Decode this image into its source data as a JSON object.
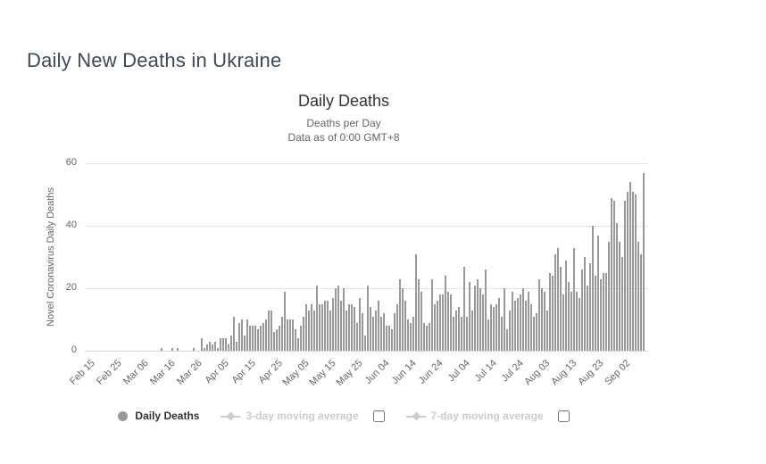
{
  "page": {
    "title": "Daily New Deaths in Ukraine"
  },
  "colors": {
    "bar": "#999999",
    "gridline": "#e6e6e6",
    "x_axis_line": "#ccd6eb",
    "title_text": "#333333",
    "subtitle_text": "#666666",
    "page_title_text": "#3a4a5c",
    "legend_active_text": "#333333",
    "legend_disabled": "#cccccc"
  },
  "legend": {
    "items": [
      {
        "label": "Daily Deaths",
        "state": "active",
        "marker": "circle",
        "checkbox": false
      },
      {
        "label": "3-day moving average",
        "state": "disabled",
        "marker": "line-diamond",
        "checkbox": true,
        "checked": false
      },
      {
        "label": "7-day moving average",
        "state": "disabled",
        "marker": "line-diamond",
        "checkbox": true,
        "checked": false
      }
    ]
  },
  "chart_data": {
    "type": "bar",
    "title": "Daily Deaths",
    "subtitle_line1": "Deaths per Day",
    "subtitle_line2": "Data as of 0:00 GMT+8",
    "xlabel": "",
    "ylabel": "Novel Coronavirus Daily Deaths",
    "series_name": "Daily Deaths",
    "ylim": [
      0,
      60
    ],
    "yticks": [
      0,
      20,
      40,
      60
    ],
    "grid": true,
    "legend_position": "bottom",
    "xticklabels": [
      "Feb 15",
      "Feb 25",
      "Mar 06",
      "Mar 16",
      "Mar 26",
      "Apr 05",
      "Apr 15",
      "Apr 25",
      "May 05",
      "May 15",
      "May 25",
      "Jun 04",
      "Jun 14",
      "Jun 24",
      "Jul 04",
      "Jul 14",
      "Jul 24",
      "Aug 03",
      "Aug 13",
      "Aug 23",
      "Sep 02"
    ],
    "categories": [
      "Feb 15",
      "Feb 16",
      "Feb 17",
      "Feb 18",
      "Feb 19",
      "Feb 20",
      "Feb 21",
      "Feb 22",
      "Feb 23",
      "Feb 24",
      "Feb 25",
      "Feb 26",
      "Feb 27",
      "Feb 28",
      "Feb 29",
      "Mar 01",
      "Mar 02",
      "Mar 03",
      "Mar 04",
      "Mar 05",
      "Mar 06",
      "Mar 07",
      "Mar 08",
      "Mar 09",
      "Mar 10",
      "Mar 11",
      "Mar 12",
      "Mar 13",
      "Mar 14",
      "Mar 15",
      "Mar 16",
      "Mar 17",
      "Mar 18",
      "Mar 19",
      "Mar 20",
      "Mar 21",
      "Mar 22",
      "Mar 23",
      "Mar 24",
      "Mar 25",
      "Mar 26",
      "Mar 27",
      "Mar 28",
      "Mar 29",
      "Mar 30",
      "Mar 31",
      "Apr 01",
      "Apr 02",
      "Apr 03",
      "Apr 04",
      "Apr 05",
      "Apr 06",
      "Apr 07",
      "Apr 08",
      "Apr 09",
      "Apr 10",
      "Apr 11",
      "Apr 12",
      "Apr 13",
      "Apr 14",
      "Apr 15",
      "Apr 16",
      "Apr 17",
      "Apr 18",
      "Apr 19",
      "Apr 20",
      "Apr 21",
      "Apr 22",
      "Apr 23",
      "Apr 24",
      "Apr 25",
      "Apr 26",
      "Apr 27",
      "Apr 28",
      "Apr 29",
      "Apr 30",
      "May 01",
      "May 02",
      "May 03",
      "May 04",
      "May 05",
      "May 06",
      "May 07",
      "May 08",
      "May 09",
      "May 10",
      "May 11",
      "May 12",
      "May 13",
      "May 14",
      "May 15",
      "May 16",
      "May 17",
      "May 18",
      "May 19",
      "May 20",
      "May 21",
      "May 22",
      "May 23",
      "May 24",
      "May 25",
      "May 26",
      "May 27",
      "May 28",
      "May 29",
      "May 30",
      "May 31",
      "Jun 01",
      "Jun 02",
      "Jun 03",
      "Jun 04",
      "Jun 05",
      "Jun 06",
      "Jun 07",
      "Jun 08",
      "Jun 09",
      "Jun 10",
      "Jun 11",
      "Jun 12",
      "Jun 13",
      "Jun 14",
      "Jun 15",
      "Jun 16",
      "Jun 17",
      "Jun 18",
      "Jun 19",
      "Jun 20",
      "Jun 21",
      "Jun 22",
      "Jun 23",
      "Jun 24",
      "Jun 25",
      "Jun 26",
      "Jun 27",
      "Jun 28",
      "Jun 29",
      "Jun 30",
      "Jul 01",
      "Jul 02",
      "Jul 03",
      "Jul 04",
      "Jul 05",
      "Jul 06",
      "Jul 07",
      "Jul 08",
      "Jul 09",
      "Jul 10",
      "Jul 11",
      "Jul 12",
      "Jul 13",
      "Jul 14",
      "Jul 15",
      "Jul 16",
      "Jul 17",
      "Jul 18",
      "Jul 19",
      "Jul 20",
      "Jul 21",
      "Jul 22",
      "Jul 23",
      "Jul 24",
      "Jul 25",
      "Jul 26",
      "Jul 27",
      "Jul 28",
      "Jul 29",
      "Jul 30",
      "Jul 31",
      "Aug 01",
      "Aug 02",
      "Aug 03",
      "Aug 04",
      "Aug 05",
      "Aug 06",
      "Aug 07",
      "Aug 08",
      "Aug 09",
      "Aug 10",
      "Aug 11",
      "Aug 12",
      "Aug 13",
      "Aug 14",
      "Aug 15",
      "Aug 16",
      "Aug 17",
      "Aug 18",
      "Aug 19",
      "Aug 20",
      "Aug 21",
      "Aug 22",
      "Aug 23",
      "Aug 24",
      "Aug 25",
      "Aug 26",
      "Aug 27",
      "Aug 28",
      "Aug 29",
      "Aug 30",
      "Aug 31",
      "Sep 01",
      "Sep 02",
      "Sep 03",
      "Sep 04",
      "Sep 05",
      "Sep 06",
      "Sep 07",
      "Sep 08",
      "Sep 09"
    ],
    "values": [
      0,
      0,
      0,
      0,
      0,
      0,
      0,
      0,
      0,
      0,
      0,
      0,
      0,
      0,
      0,
      0,
      0,
      0,
      0,
      0,
      0,
      0,
      0,
      0,
      0,
      0,
      0,
      1,
      0,
      0,
      0,
      1,
      0,
      1,
      0,
      0,
      0,
      0,
      0,
      1,
      0,
      0,
      4,
      1,
      2,
      3,
      2,
      3,
      1,
      4,
      4,
      4,
      2,
      5,
      11,
      3,
      9,
      10,
      5,
      10,
      8,
      8,
      8,
      7,
      8,
      9,
      10,
      13,
      13,
      6,
      7,
      8,
      11,
      19,
      10,
      10,
      10,
      7,
      4,
      8,
      11,
      15,
      13,
      15,
      13,
      21,
      15,
      15,
      16,
      16,
      13,
      17,
      20,
      21,
      16,
      20,
      13,
      15,
      15,
      14,
      9,
      17,
      12,
      5,
      21,
      14,
      11,
      13,
      16,
      11,
      12,
      8,
      8,
      7,
      12,
      15,
      23,
      20,
      16,
      10,
      9,
      11,
      31,
      23,
      19,
      9,
      8,
      9,
      23,
      15,
      16,
      18,
      18,
      24,
      19,
      18,
      11,
      13,
      14,
      11,
      27,
      11,
      22,
      13,
      21,
      23,
      20,
      18,
      26,
      10,
      15,
      14,
      15,
      17,
      11,
      20,
      7,
      13,
      19,
      16,
      17,
      18,
      20,
      16,
      19,
      15,
      11,
      12,
      23,
      20,
      19,
      13,
      25,
      24,
      31,
      33,
      27,
      18,
      29,
      22,
      19,
      33,
      19,
      17,
      26,
      30,
      21,
      28,
      40,
      24,
      37,
      23,
      25,
      25,
      35,
      49,
      48,
      41,
      35,
      30,
      48,
      51,
      54,
      51,
      50,
      35,
      31,
      57
    ]
  }
}
